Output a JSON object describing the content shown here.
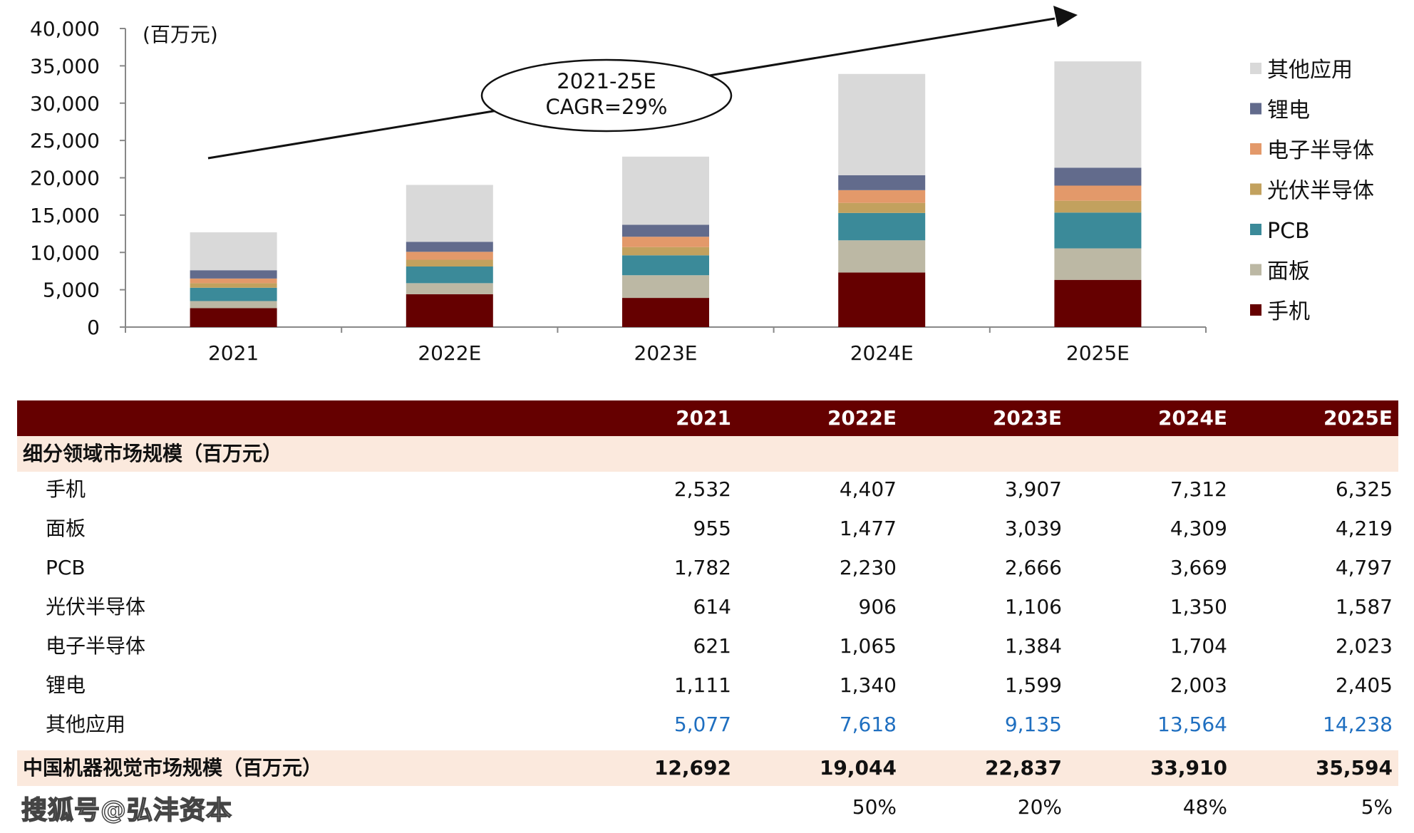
{
  "chart_data": {
    "type": "bar",
    "stacked": true,
    "categories": [
      "2021",
      "2022E",
      "2023E",
      "2024E",
      "2025E"
    ],
    "unit_label": "(百万元)",
    "ylim": [
      0,
      40000
    ],
    "yticks": [
      "0",
      "5,000",
      "10,000",
      "15,000",
      "20,000",
      "25,000",
      "30,000",
      "35,000",
      "40,000"
    ],
    "ytick_values": [
      0,
      5000,
      10000,
      15000,
      20000,
      25000,
      30000,
      35000,
      40000
    ],
    "series": [
      {
        "name": "手机",
        "color": "#650000",
        "values": [
          2532,
          4407,
          3907,
          7312,
          6325
        ]
      },
      {
        "name": "面板",
        "color": "#bcb8a4",
        "values": [
          955,
          1477,
          3039,
          4309,
          4219
        ]
      },
      {
        "name": "PCB",
        "color": "#3b8a99",
        "values": [
          1782,
          2230,
          2666,
          3669,
          4797
        ]
      },
      {
        "name": "光伏半导体",
        "color": "#c2a15e",
        "values": [
          614,
          906,
          1106,
          1350,
          1587
        ]
      },
      {
        "name": "电子半导体",
        "color": "#e3996a",
        "values": [
          621,
          1065,
          1384,
          1704,
          2023
        ]
      },
      {
        "name": "锂电",
        "color": "#626b8c",
        "values": [
          1111,
          1340,
          1599,
          2003,
          2405
        ]
      },
      {
        "name": "其他应用",
        "color": "#d9d9d9",
        "values": [
          5077,
          7618,
          9135,
          13564,
          14238
        ]
      }
    ],
    "legend_position": "right",
    "annotation": {
      "line1": "2021-25E",
      "line2": "CAGR=29%"
    }
  },
  "table": {
    "header": [
      "2021",
      "2022E",
      "2023E",
      "2024E",
      "2025E"
    ],
    "section_title": "细分领域市场规模（百万元）",
    "rows": [
      {
        "label": "手机",
        "values": [
          "2,532",
          "4,407",
          "3,907",
          "7,312",
          "6,325"
        ]
      },
      {
        "label": "面板",
        "values": [
          "955",
          "1,477",
          "3,039",
          "4,309",
          "4,219"
        ]
      },
      {
        "label": "PCB",
        "values": [
          "1,782",
          "2,230",
          "2,666",
          "3,669",
          "4,797"
        ]
      },
      {
        "label": "光伏半导体",
        "values": [
          "614",
          "906",
          "1,106",
          "1,350",
          "1,587"
        ]
      },
      {
        "label": "电子半导体",
        "values": [
          "621",
          "1,065",
          "1,384",
          "1,704",
          "2,023"
        ]
      },
      {
        "label": "锂电",
        "values": [
          "1,111",
          "1,340",
          "1,599",
          "2,003",
          "2,405"
        ]
      },
      {
        "label": "其他应用",
        "values": [
          "5,077",
          "7,618",
          "9,135",
          "13,564",
          "14,238"
        ]
      }
    ],
    "total": {
      "label": "中国机器视觉市场规模（百万元）",
      "values": [
        "12,692",
        "19,044",
        "22,837",
        "33,910",
        "35,594"
      ]
    },
    "growth": [
      "",
      "50%",
      "20%",
      "48%",
      "5%"
    ]
  },
  "watermark": "搜狐号@弘沣资本"
}
